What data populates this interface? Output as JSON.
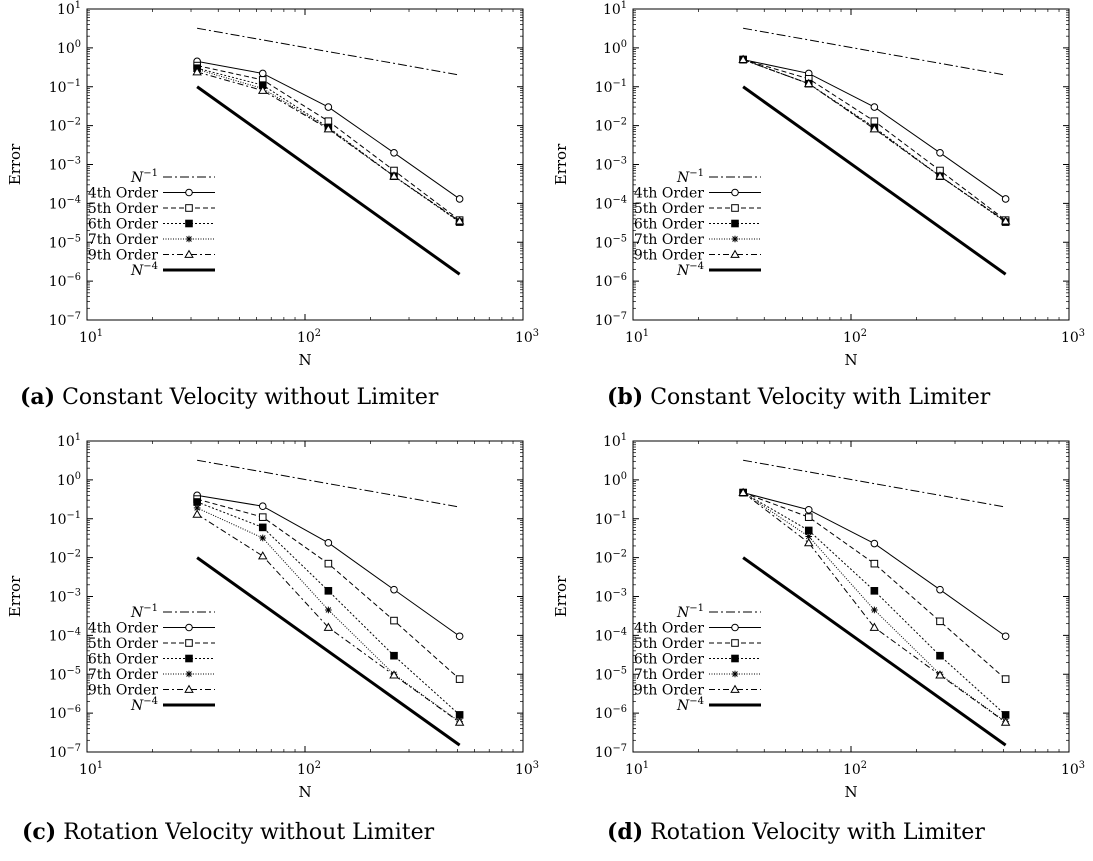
{
  "panels": [
    {
      "label": "(a)",
      "caption": "Constant Velocity without Limiter",
      "chart_data": {
        "type": "line",
        "xlabel": "N",
        "ylabel": "Error",
        "xscale": "log",
        "yscale": "log",
        "xlim": [
          10,
          1000
        ],
        "ylim": [
          1e-07,
          10
        ],
        "grid": false,
        "legend_placement": "bottom-left",
        "x_ticks": [
          {
            "v": 10,
            "e": "1"
          },
          {
            "v": 100,
            "e": "2"
          },
          {
            "v": 1000,
            "e": "3"
          }
        ],
        "y_ticks": [
          {
            "v": 1e-07,
            "e": "−7"
          },
          {
            "v": 1e-06,
            "e": "−6"
          },
          {
            "v": 1e-05,
            "e": "−5"
          },
          {
            "v": 0.0001,
            "e": "−4"
          },
          {
            "v": 0.001,
            "e": "−3"
          },
          {
            "v": 0.01,
            "e": "−2"
          },
          {
            "v": 0.1,
            "e": "−1"
          },
          {
            "v": 1,
            "e": "0"
          },
          {
            "v": 10,
            "e": "1"
          }
        ],
        "series": [
          {
            "name": "N^{-1}",
            "base": "N",
            "exp": "−1",
            "style": "dashdot",
            "marker": "none",
            "x": [
              32,
              512
            ],
            "values": [
              3.2,
              0.2
            ]
          },
          {
            "name": "4th Order",
            "style": "solid",
            "marker": "circle",
            "x": [
              32,
              64,
              128,
              256,
              512
            ],
            "values": [
              0.45,
              0.22,
              0.03,
              0.002,
              0.00013
            ]
          },
          {
            "name": "5th Order",
            "style": "dashed",
            "marker": "square-open",
            "x": [
              32,
              64,
              128,
              256,
              512
            ],
            "values": [
              0.35,
              0.15,
              0.013,
              0.0007,
              3.7e-05
            ]
          },
          {
            "name": "6th Order",
            "style": "dotted",
            "marker": "square-filled",
            "x": [
              32,
              64,
              128,
              256,
              512
            ],
            "values": [
              0.3,
              0.11,
              0.009,
              0.0005,
              3.3e-05
            ]
          },
          {
            "name": "7th Order",
            "style": "densedot",
            "marker": "star",
            "x": [
              32,
              64,
              128,
              256,
              512
            ],
            "values": [
              0.28,
              0.09,
              0.0085,
              0.0005,
              3.4e-05
            ]
          },
          {
            "name": "9th Order",
            "style": "dashdot2",
            "marker": "triangle",
            "x": [
              32,
              64,
              128,
              256,
              512
            ],
            "values": [
              0.24,
              0.08,
              0.0082,
              0.0005,
              3.5e-05
            ]
          },
          {
            "name": "N^{-4}",
            "base": "N",
            "exp": "−4",
            "style": "thick",
            "marker": "none",
            "x": [
              32,
              512
            ],
            "values": [
              0.1,
              1.5e-06
            ]
          }
        ]
      }
    },
    {
      "label": "(b)",
      "caption": "Constant Velocity with Limiter",
      "chart_data": {
        "type": "line",
        "xlabel": "N",
        "ylabel": "Error",
        "xscale": "log",
        "yscale": "log",
        "xlim": [
          10,
          1000
        ],
        "ylim": [
          1e-07,
          10
        ],
        "grid": false,
        "legend_placement": "bottom-left",
        "x_ticks": [
          {
            "v": 10,
            "e": "1"
          },
          {
            "v": 100,
            "e": "2"
          },
          {
            "v": 1000,
            "e": "3"
          }
        ],
        "y_ticks": [
          {
            "v": 1e-07,
            "e": "−7"
          },
          {
            "v": 1e-06,
            "e": "−6"
          },
          {
            "v": 1e-05,
            "e": "−5"
          },
          {
            "v": 0.0001,
            "e": "−4"
          },
          {
            "v": 0.001,
            "e": "−3"
          },
          {
            "v": 0.01,
            "e": "−2"
          },
          {
            "v": 0.1,
            "e": "−1"
          },
          {
            "v": 1,
            "e": "0"
          },
          {
            "v": 10,
            "e": "1"
          }
        ],
        "series": [
          {
            "name": "N^{-1}",
            "base": "N",
            "exp": "−1",
            "style": "dashdot",
            "marker": "none",
            "x": [
              32,
              512
            ],
            "values": [
              3.2,
              0.2
            ]
          },
          {
            "name": "4th Order",
            "style": "solid",
            "marker": "circle",
            "x": [
              32,
              64,
              128,
              256,
              512
            ],
            "values": [
              0.5,
              0.22,
              0.03,
              0.002,
              0.00013
            ]
          },
          {
            "name": "5th Order",
            "style": "dashed",
            "marker": "square-open",
            "x": [
              32,
              64,
              128,
              256,
              512
            ],
            "values": [
              0.5,
              0.16,
              0.013,
              0.0007,
              3.7e-05
            ]
          },
          {
            "name": "6th Order",
            "style": "dotted",
            "marker": "square-filled",
            "x": [
              32,
              64,
              128,
              256,
              512
            ],
            "values": [
              0.5,
              0.12,
              0.009,
              0.0005,
              3.3e-05
            ]
          },
          {
            "name": "7th Order",
            "style": "densedot",
            "marker": "star",
            "x": [
              32,
              64,
              128,
              256,
              512
            ],
            "values": [
              0.5,
              0.12,
              0.0085,
              0.0005,
              3.4e-05
            ]
          },
          {
            "name": "9th Order",
            "style": "dashdot2",
            "marker": "triangle",
            "x": [
              32,
              64,
              128,
              256,
              512
            ],
            "values": [
              0.5,
              0.12,
              0.0082,
              0.0005,
              3.5e-05
            ]
          },
          {
            "name": "N^{-4}",
            "base": "N",
            "exp": "−4",
            "style": "thick",
            "marker": "none",
            "x": [
              32,
              512
            ],
            "values": [
              0.1,
              1.5e-06
            ]
          }
        ]
      }
    },
    {
      "label": "(c)",
      "caption": "Rotation Velocity without Limiter",
      "chart_data": {
        "type": "line",
        "xlabel": "N",
        "ylabel": "Error",
        "xscale": "log",
        "yscale": "log",
        "xlim": [
          10,
          1000
        ],
        "ylim": [
          1e-07,
          10
        ],
        "grid": false,
        "legend_placement": "bottom-left",
        "x_ticks": [
          {
            "v": 10,
            "e": "1"
          },
          {
            "v": 100,
            "e": "2"
          },
          {
            "v": 1000,
            "e": "3"
          }
        ],
        "y_ticks": [
          {
            "v": 1e-07,
            "e": "−7"
          },
          {
            "v": 1e-06,
            "e": "−6"
          },
          {
            "v": 1e-05,
            "e": "−5"
          },
          {
            "v": 0.0001,
            "e": "−4"
          },
          {
            "v": 0.001,
            "e": "−3"
          },
          {
            "v": 0.01,
            "e": "−2"
          },
          {
            "v": 0.1,
            "e": "−1"
          },
          {
            "v": 1,
            "e": "0"
          },
          {
            "v": 10,
            "e": "1"
          }
        ],
        "series": [
          {
            "name": "N^{-1}",
            "base": "N",
            "exp": "−1",
            "style": "dashdot",
            "marker": "none",
            "x": [
              32,
              512
            ],
            "values": [
              3.2,
              0.2
            ]
          },
          {
            "name": "4th Order",
            "style": "solid",
            "marker": "circle",
            "x": [
              32,
              64,
              128,
              256,
              512
            ],
            "values": [
              0.4,
              0.21,
              0.024,
              0.0015,
              9.5e-05
            ]
          },
          {
            "name": "5th Order",
            "style": "dashed",
            "marker": "square-open",
            "x": [
              32,
              64,
              128,
              256,
              512
            ],
            "values": [
              0.32,
              0.11,
              0.007,
              0.00024,
              7.5e-06
            ]
          },
          {
            "name": "6th Order",
            "style": "dotted",
            "marker": "square-filled",
            "x": [
              32,
              64,
              128,
              256,
              512
            ],
            "values": [
              0.27,
              0.06,
              0.0014,
              3e-05,
              9e-07
            ]
          },
          {
            "name": "7th Order",
            "style": "densedot",
            "marker": "star",
            "x": [
              32,
              64,
              128,
              256,
              512
            ],
            "values": [
              0.19,
              0.032,
              0.00045,
              1e-05,
              6e-07
            ]
          },
          {
            "name": "9th Order",
            "style": "dashdot2",
            "marker": "triangle",
            "x": [
              32,
              64,
              128,
              256,
              512
            ],
            "values": [
              0.13,
              0.011,
              0.00016,
              9.5e-06,
              5.8e-07
            ]
          },
          {
            "name": "N^{-4}",
            "base": "N",
            "exp": "−4",
            "style": "thick",
            "marker": "none",
            "x": [
              32,
              512
            ],
            "values": [
              0.01,
              1.5e-07
            ]
          }
        ]
      }
    },
    {
      "label": "(d)",
      "caption": "Rotation Velocity with Limiter",
      "chart_data": {
        "type": "line",
        "xlabel": "N",
        "ylabel": "Error",
        "xscale": "log",
        "yscale": "log",
        "xlim": [
          10,
          1000
        ],
        "ylim": [
          1e-07,
          10
        ],
        "grid": false,
        "legend_placement": "bottom-left",
        "x_ticks": [
          {
            "v": 10,
            "e": "1"
          },
          {
            "v": 100,
            "e": "2"
          },
          {
            "v": 1000,
            "e": "3"
          }
        ],
        "y_ticks": [
          {
            "v": 1e-07,
            "e": "−7"
          },
          {
            "v": 1e-06,
            "e": "−6"
          },
          {
            "v": 1e-05,
            "e": "−5"
          },
          {
            "v": 0.0001,
            "e": "−4"
          },
          {
            "v": 0.001,
            "e": "−3"
          },
          {
            "v": 0.01,
            "e": "−2"
          },
          {
            "v": 0.1,
            "e": "−1"
          },
          {
            "v": 1,
            "e": "0"
          },
          {
            "v": 10,
            "e": "1"
          }
        ],
        "series": [
          {
            "name": "N^{-1}",
            "base": "N",
            "exp": "−1",
            "style": "dashdot",
            "marker": "none",
            "x": [
              32,
              512
            ],
            "values": [
              3.2,
              0.2
            ]
          },
          {
            "name": "4th Order",
            "style": "solid",
            "marker": "circle",
            "x": [
              32,
              64,
              128,
              256,
              512
            ],
            "values": [
              0.47,
              0.17,
              0.023,
              0.0015,
              9.5e-05
            ]
          },
          {
            "name": "5th Order",
            "style": "dashed",
            "marker": "square-open",
            "x": [
              32,
              64,
              128,
              256,
              512
            ],
            "values": [
              0.47,
              0.11,
              0.007,
              0.00023,
              7.5e-06
            ]
          },
          {
            "name": "6th Order",
            "style": "dotted",
            "marker": "square-filled",
            "x": [
              32,
              64,
              128,
              256,
              512
            ],
            "values": [
              0.47,
              0.05,
              0.0014,
              3e-05,
              9e-07
            ]
          },
          {
            "name": "7th Order",
            "style": "densedot",
            "marker": "star",
            "x": [
              32,
              64,
              128,
              256,
              512
            ],
            "values": [
              0.47,
              0.035,
              0.00045,
              1e-05,
              6e-07
            ]
          },
          {
            "name": "9th Order",
            "style": "dashdot2",
            "marker": "triangle",
            "x": [
              32,
              64,
              128,
              256,
              512
            ],
            "values": [
              0.47,
              0.024,
              0.00016,
              9.5e-06,
              5.8e-07
            ]
          },
          {
            "name": "N^{-4}",
            "base": "N",
            "exp": "−4",
            "style": "thick",
            "marker": "none",
            "x": [
              32,
              512
            ],
            "values": [
              0.01,
              1.5e-07
            ]
          }
        ]
      }
    }
  ]
}
